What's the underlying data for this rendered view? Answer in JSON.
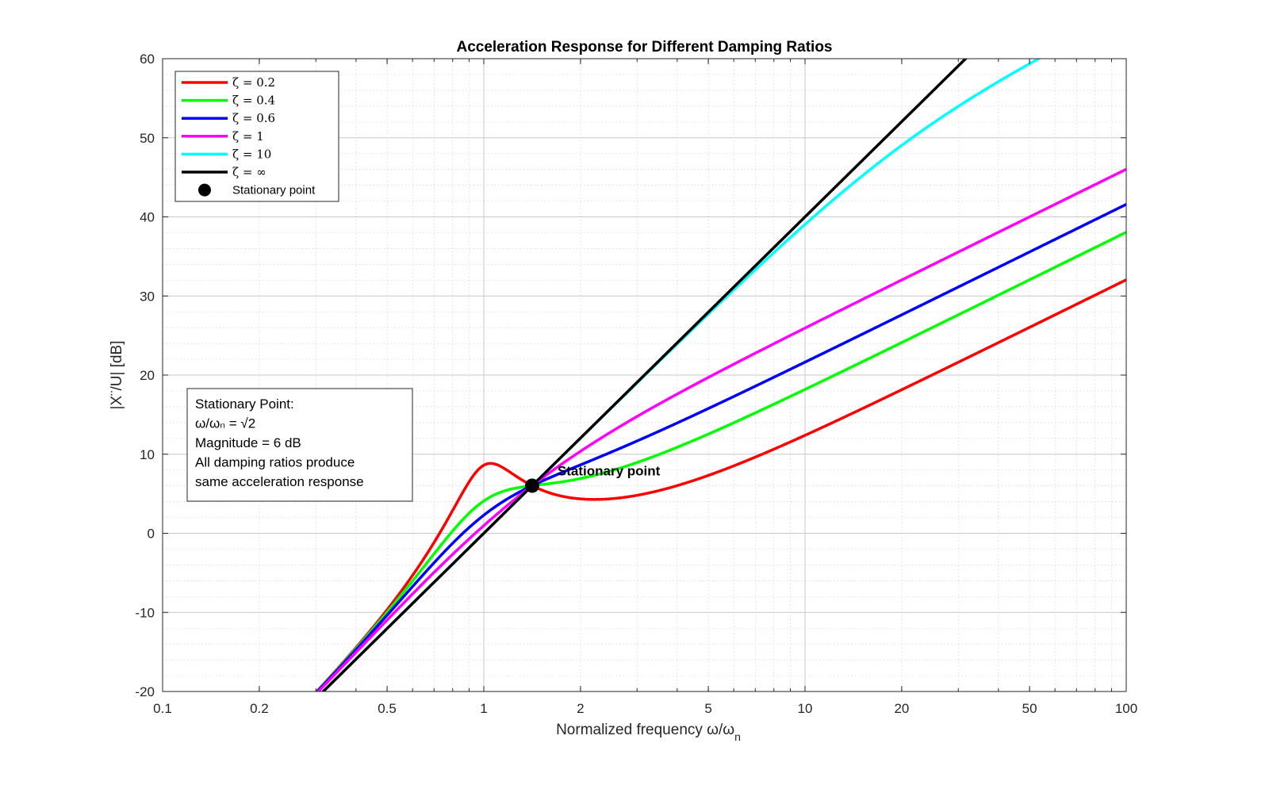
{
  "chart_data": {
    "type": "line",
    "title": "Acceleration Response for Different Damping Ratios",
    "xlabel": "Normalized frequency ω/ω",
    "xlabel_sub": "n",
    "ylabel": "|X¨/U| [dB]",
    "xscale": "log",
    "xlim": [
      0.1,
      100
    ],
    "ylim": [
      -20,
      60
    ],
    "grid": true,
    "minor_grid": true,
    "x_ticks": [
      0.1,
      0.2,
      0.5,
      1,
      2,
      5,
      10,
      20,
      50,
      100
    ],
    "x_tick_labels": [
      "0.1",
      "0.2",
      "0.5",
      "1",
      "2",
      "5",
      "10",
      "20",
      "50",
      "100"
    ],
    "y_ticks": [
      -20,
      -10,
      0,
      10,
      20,
      30,
      40,
      50,
      60
    ],
    "y_tick_labels": [
      "-20",
      "-10",
      "0",
      "10",
      "20",
      "30",
      "40",
      "50",
      "60"
    ],
    "legend_position": "top-left",
    "series": [
      {
        "name": "ζ = 0.2",
        "color": "#ff0000",
        "zeta": 0.2
      },
      {
        "name": "ζ = 0.4",
        "color": "#00ff00",
        "zeta": 0.4
      },
      {
        "name": "ζ = 0.6",
        "color": "#0000ff",
        "zeta": 0.6
      },
      {
        "name": "ζ = 1",
        "color": "#ff00ff",
        "zeta": 1
      },
      {
        "name": "ζ = 10",
        "color": "#00ffff",
        "zeta": 10
      },
      {
        "name": "ζ = ∞",
        "color": "#000000",
        "zeta": "inf"
      }
    ],
    "stationary_point": {
      "name": "Stationary point",
      "x": 1.414,
      "y": 6.02,
      "label": "Stationary point"
    },
    "info_box": {
      "lines": [
        "Stationary Point:",
        "ω/ωₙ = √2",
        "Magnitude = 6 dB",
        "All damping ratios produce",
        "same acceleration response"
      ]
    }
  }
}
